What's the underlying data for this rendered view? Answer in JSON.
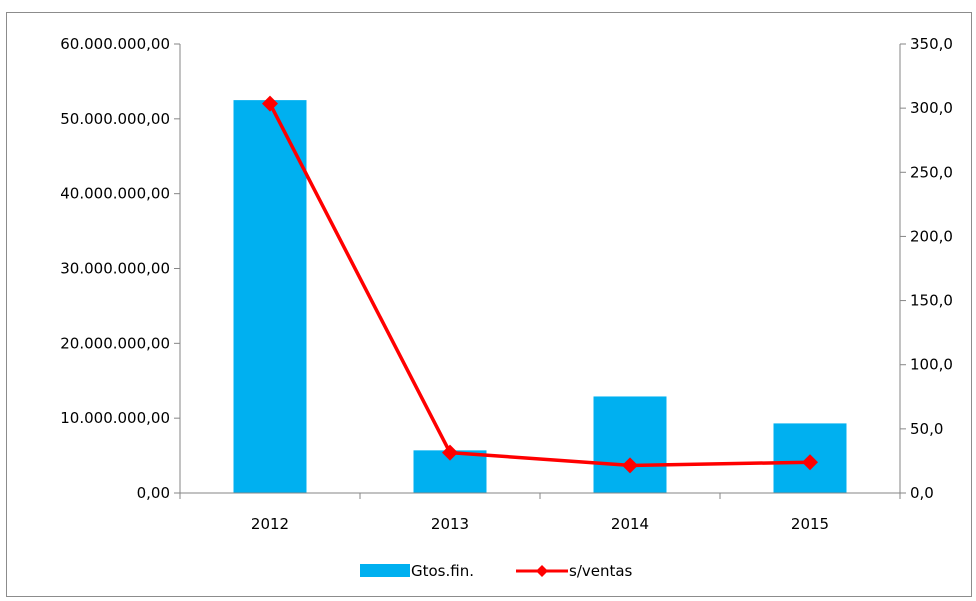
{
  "chart_data": {
    "type": "bar+line",
    "categories": [
      "2012",
      "2013",
      "2014",
      "2015"
    ],
    "series": [
      {
        "name": "Gtos.fin.",
        "type": "bar",
        "axis": "left",
        "color": "#00b0f0",
        "values": [
          52500000,
          5700000,
          12900000,
          9300000
        ]
      },
      {
        "name": "s/ventas",
        "type": "line",
        "axis": "right",
        "color": "#ff0000",
        "marker": "diamond",
        "values": [
          303.5,
          31.5,
          21.5,
          24.0
        ]
      }
    ],
    "y_left": {
      "range": [
        0,
        60000000
      ],
      "ticks": [
        0,
        10000000,
        20000000,
        30000000,
        40000000,
        50000000,
        60000000
      ],
      "tick_labels": [
        "0,00",
        "10.000.000,00",
        "20.000.000,00",
        "30.000.000,00",
        "40.000.000,00",
        "50.000.000,00",
        "60.000.000,00"
      ]
    },
    "y_right": {
      "range": [
        0,
        350
      ],
      "ticks": [
        0,
        50,
        100,
        150,
        200,
        250,
        300,
        350
      ],
      "tick_labels": [
        "0,0",
        "50,0",
        "100,0",
        "150,0",
        "200,0",
        "250,0",
        "300,0",
        "350,0"
      ]
    },
    "title": "",
    "xlabel": "",
    "ylabel": "",
    "grid": false,
    "legend": "bottom"
  }
}
